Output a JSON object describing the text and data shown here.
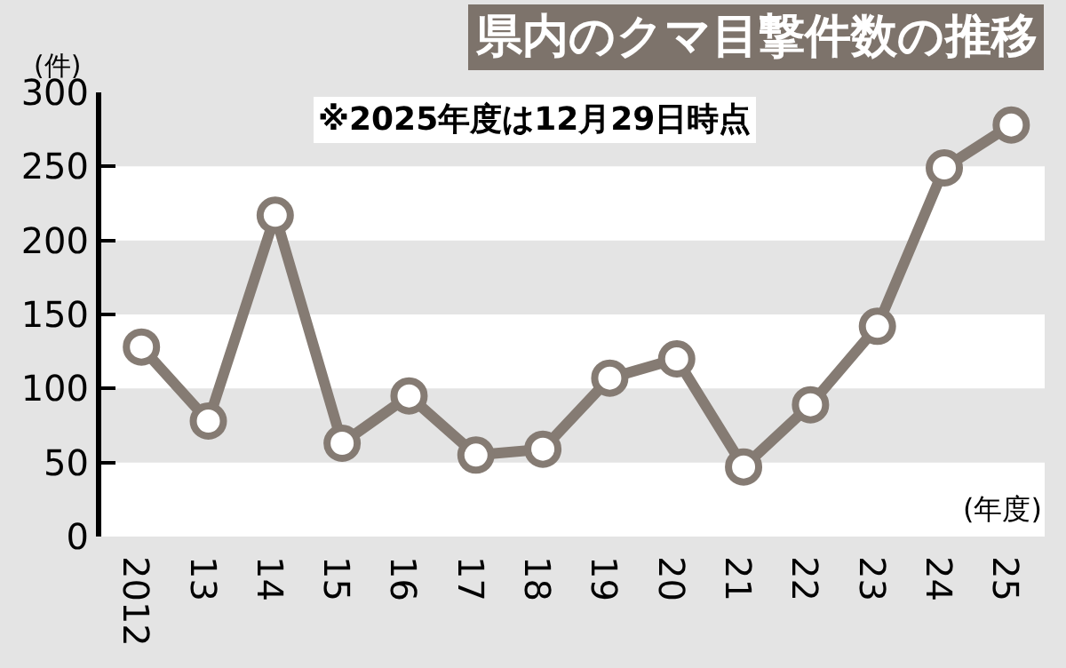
{
  "chart_data": {
    "type": "line",
    "title": "県内のクマ目撃件数の推移",
    "subtitle": "※2025年度は12月29日時点",
    "xlabel": "(年度)",
    "ylabel": "(件)",
    "categories": [
      "2012",
      "13",
      "14",
      "15",
      "16",
      "17",
      "18",
      "19",
      "20",
      "21",
      "22",
      "23",
      "24",
      "25"
    ],
    "series": [
      {
        "color": "#857b73",
        "values": [
          128,
          78,
          217,
          63,
          95,
          55,
          59,
          107,
          120,
          47,
          89,
          142,
          249,
          278
        ]
      }
    ],
    "ylim": [
      0,
      300
    ],
    "yticks": [
      0,
      50,
      100,
      150,
      200,
      250,
      300
    ],
    "bands": [
      {
        "axis": "y",
        "from": 50,
        "to": 100,
        "color": "#e4e4e4"
      },
      {
        "axis": "y",
        "from": 150,
        "to": 200,
        "color": "#e4e4e4"
      },
      {
        "axis": "y",
        "from": 250,
        "to": 300,
        "color": "#e4e4e4"
      }
    ],
    "grid": false,
    "legend": false,
    "marker": "circle",
    "line_style": "solid"
  }
}
